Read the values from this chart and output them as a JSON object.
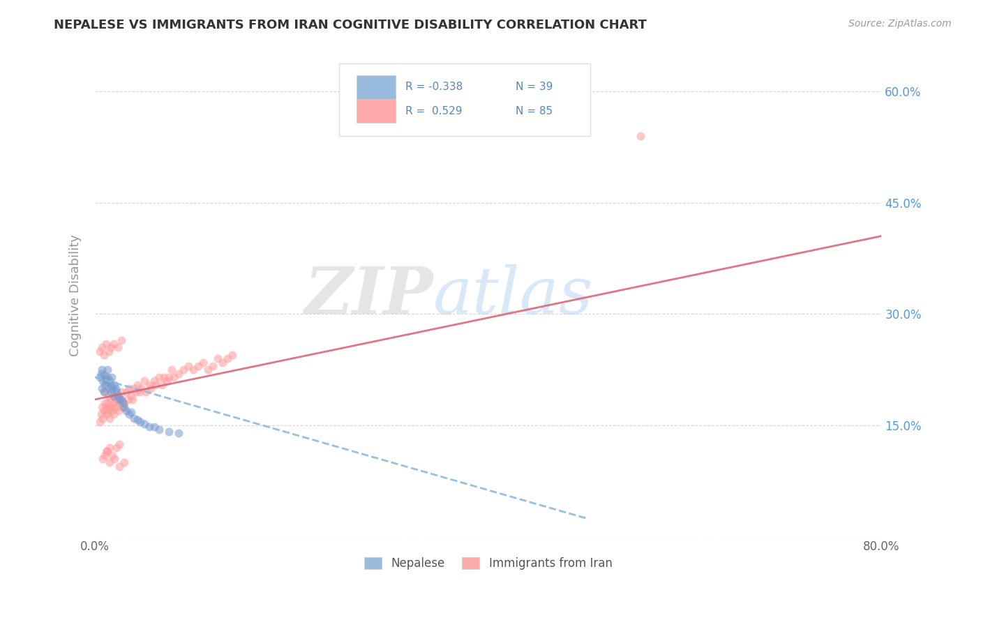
{
  "title": "NEPALESE VS IMMIGRANTS FROM IRAN COGNITIVE DISABILITY CORRELATION CHART",
  "source": "Source: ZipAtlas.com",
  "legend_r1": "R = -0.338",
  "legend_n1": "N = 39",
  "legend_r2": "R =  0.529",
  "legend_n2": "N = 85",
  "legend_label1": "Nepalese",
  "legend_label2": "Immigrants from Iran",
  "blue_color": "#99BBDD",
  "pink_color": "#FFAAAA",
  "blue_scatter_color": "#7799CC",
  "pink_scatter_color": "#FF9999",
  "nepalese_x": [
    0.005,
    0.006,
    0.007,
    0.007,
    0.008,
    0.009,
    0.01,
    0.01,
    0.011,
    0.012,
    0.013,
    0.013,
    0.014,
    0.015,
    0.016,
    0.016,
    0.017,
    0.018,
    0.019,
    0.02,
    0.021,
    0.022,
    0.023,
    0.025,
    0.027,
    0.028,
    0.03,
    0.032,
    0.035,
    0.037,
    0.04,
    0.043,
    0.046,
    0.05,
    0.055,
    0.06,
    0.065,
    0.075,
    0.085
  ],
  "nepalese_y": [
    0.215,
    0.22,
    0.225,
    0.2,
    0.21,
    0.195,
    0.218,
    0.205,
    0.212,
    0.208,
    0.225,
    0.215,
    0.2,
    0.21,
    0.205,
    0.195,
    0.215,
    0.2,
    0.19,
    0.205,
    0.2,
    0.195,
    0.19,
    0.185,
    0.185,
    0.18,
    0.175,
    0.17,
    0.165,
    0.168,
    0.16,
    0.158,
    0.155,
    0.152,
    0.148,
    0.148,
    0.145,
    0.142,
    0.14
  ],
  "iran_x": [
    0.005,
    0.006,
    0.007,
    0.008,
    0.009,
    0.01,
    0.01,
    0.011,
    0.012,
    0.013,
    0.013,
    0.014,
    0.015,
    0.015,
    0.016,
    0.017,
    0.018,
    0.019,
    0.02,
    0.021,
    0.022,
    0.023,
    0.024,
    0.025,
    0.026,
    0.027,
    0.028,
    0.03,
    0.032,
    0.033,
    0.035,
    0.037,
    0.038,
    0.04,
    0.042,
    0.043,
    0.045,
    0.047,
    0.05,
    0.052,
    0.055,
    0.057,
    0.06,
    0.062,
    0.065,
    0.068,
    0.07,
    0.073,
    0.075,
    0.078,
    0.08,
    0.085,
    0.09,
    0.095,
    0.1,
    0.105,
    0.11,
    0.115,
    0.12,
    0.125,
    0.13,
    0.135,
    0.14,
    0.012,
    0.015,
    0.018,
    0.022,
    0.025,
    0.008,
    0.01,
    0.012,
    0.015,
    0.02,
    0.025,
    0.03,
    0.005,
    0.007,
    0.009,
    0.011,
    0.014,
    0.016,
    0.019,
    0.023,
    0.027
  ],
  "iran_y": [
    0.155,
    0.165,
    0.175,
    0.16,
    0.17,
    0.18,
    0.195,
    0.175,
    0.165,
    0.17,
    0.18,
    0.19,
    0.16,
    0.175,
    0.185,
    0.17,
    0.175,
    0.165,
    0.18,
    0.185,
    0.175,
    0.19,
    0.17,
    0.18,
    0.185,
    0.195,
    0.175,
    0.18,
    0.195,
    0.185,
    0.2,
    0.19,
    0.185,
    0.2,
    0.195,
    0.205,
    0.195,
    0.2,
    0.21,
    0.195,
    0.205,
    0.2,
    0.21,
    0.205,
    0.215,
    0.205,
    0.215,
    0.21,
    0.215,
    0.225,
    0.215,
    0.22,
    0.225,
    0.23,
    0.225,
    0.23,
    0.235,
    0.225,
    0.23,
    0.24,
    0.235,
    0.24,
    0.245,
    0.115,
    0.12,
    0.11,
    0.12,
    0.125,
    0.105,
    0.11,
    0.115,
    0.1,
    0.105,
    0.095,
    0.1,
    0.25,
    0.255,
    0.245,
    0.26,
    0.25,
    0.255,
    0.26,
    0.255,
    0.265
  ],
  "iran_outlier_x": [
    0.555
  ],
  "iran_outlier_y": [
    0.54
  ],
  "xlim": [
    0.0,
    0.8
  ],
  "ylim": [
    0.0,
    0.65
  ],
  "blue_line_x": [
    0.0,
    0.5
  ],
  "blue_line_y": [
    0.215,
    0.025
  ],
  "pink_line_x": [
    0.0,
    0.8
  ],
  "pink_line_y": [
    0.185,
    0.405
  ],
  "background_color": "#FFFFFF",
  "grid_color": "#CCCCCC",
  "title_color": "#333333",
  "right_axis_color": "#5599DD",
  "scatter_size": 75,
  "scatter_alpha": 0.55,
  "line_width": 2.0
}
